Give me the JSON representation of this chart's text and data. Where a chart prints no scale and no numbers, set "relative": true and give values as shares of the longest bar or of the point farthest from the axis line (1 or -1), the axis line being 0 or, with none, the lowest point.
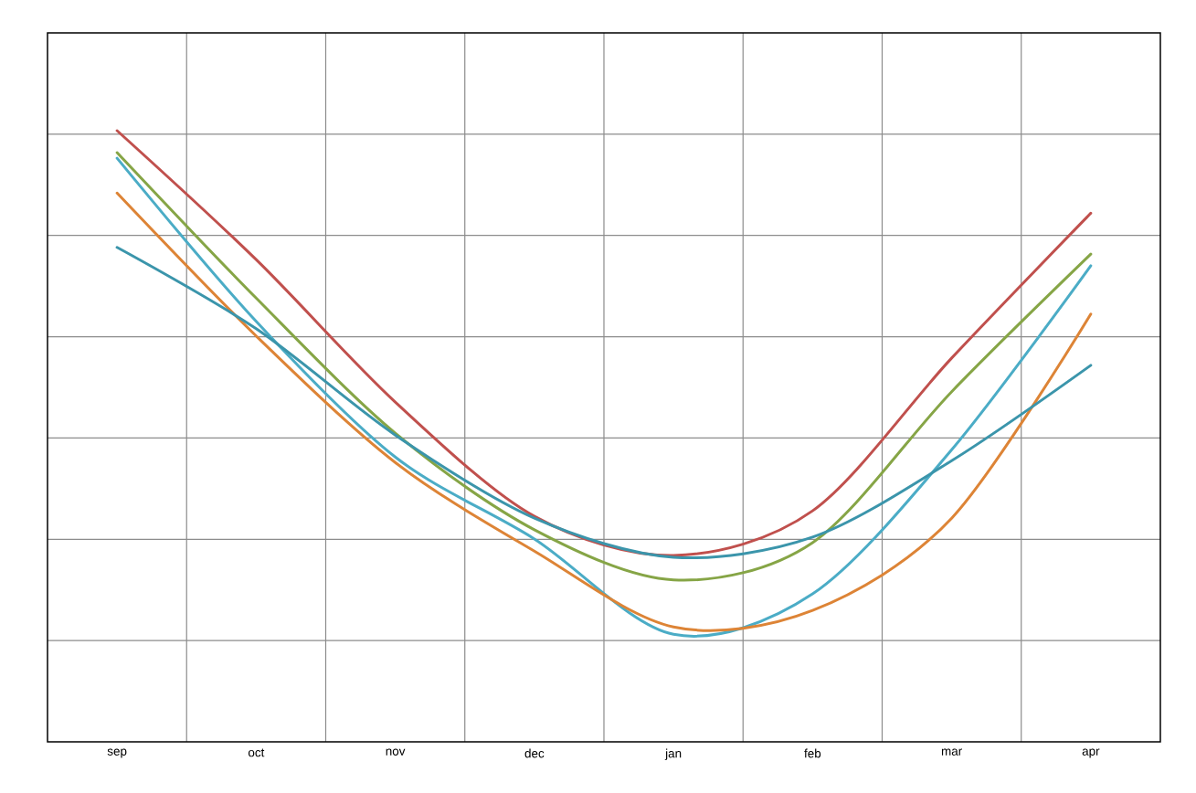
{
  "chart_data": {
    "type": "line",
    "relative": true,
    "grid": true,
    "categories": [
      "sep",
      "oct",
      "nov",
      "dec",
      "jan",
      "feb",
      "mar",
      "apr"
    ],
    "series": [
      {
        "color": "#c0504d",
        "values": [
          1.0,
          0.789,
          0.556,
          0.369,
          0.305,
          0.378,
          0.628,
          0.865
        ]
      },
      {
        "color": "#86a546",
        "values": [
          0.964,
          0.726,
          0.505,
          0.347,
          0.265,
          0.326,
          0.573,
          0.798
        ]
      },
      {
        "color": "#4bacc6",
        "values": [
          0.955,
          0.688,
          0.466,
          0.332,
          0.176,
          0.242,
          0.478,
          0.779
        ]
      },
      {
        "color": "#dd8436",
        "values": [
          0.898,
          0.664,
          0.457,
          0.312,
          0.188,
          0.215,
          0.366,
          0.7
        ]
      },
      {
        "color": "#3b95ab",
        "values": [
          0.809,
          0.676,
          0.502,
          0.366,
          0.302,
          0.335,
          0.46,
          0.616
        ]
      }
    ]
  }
}
